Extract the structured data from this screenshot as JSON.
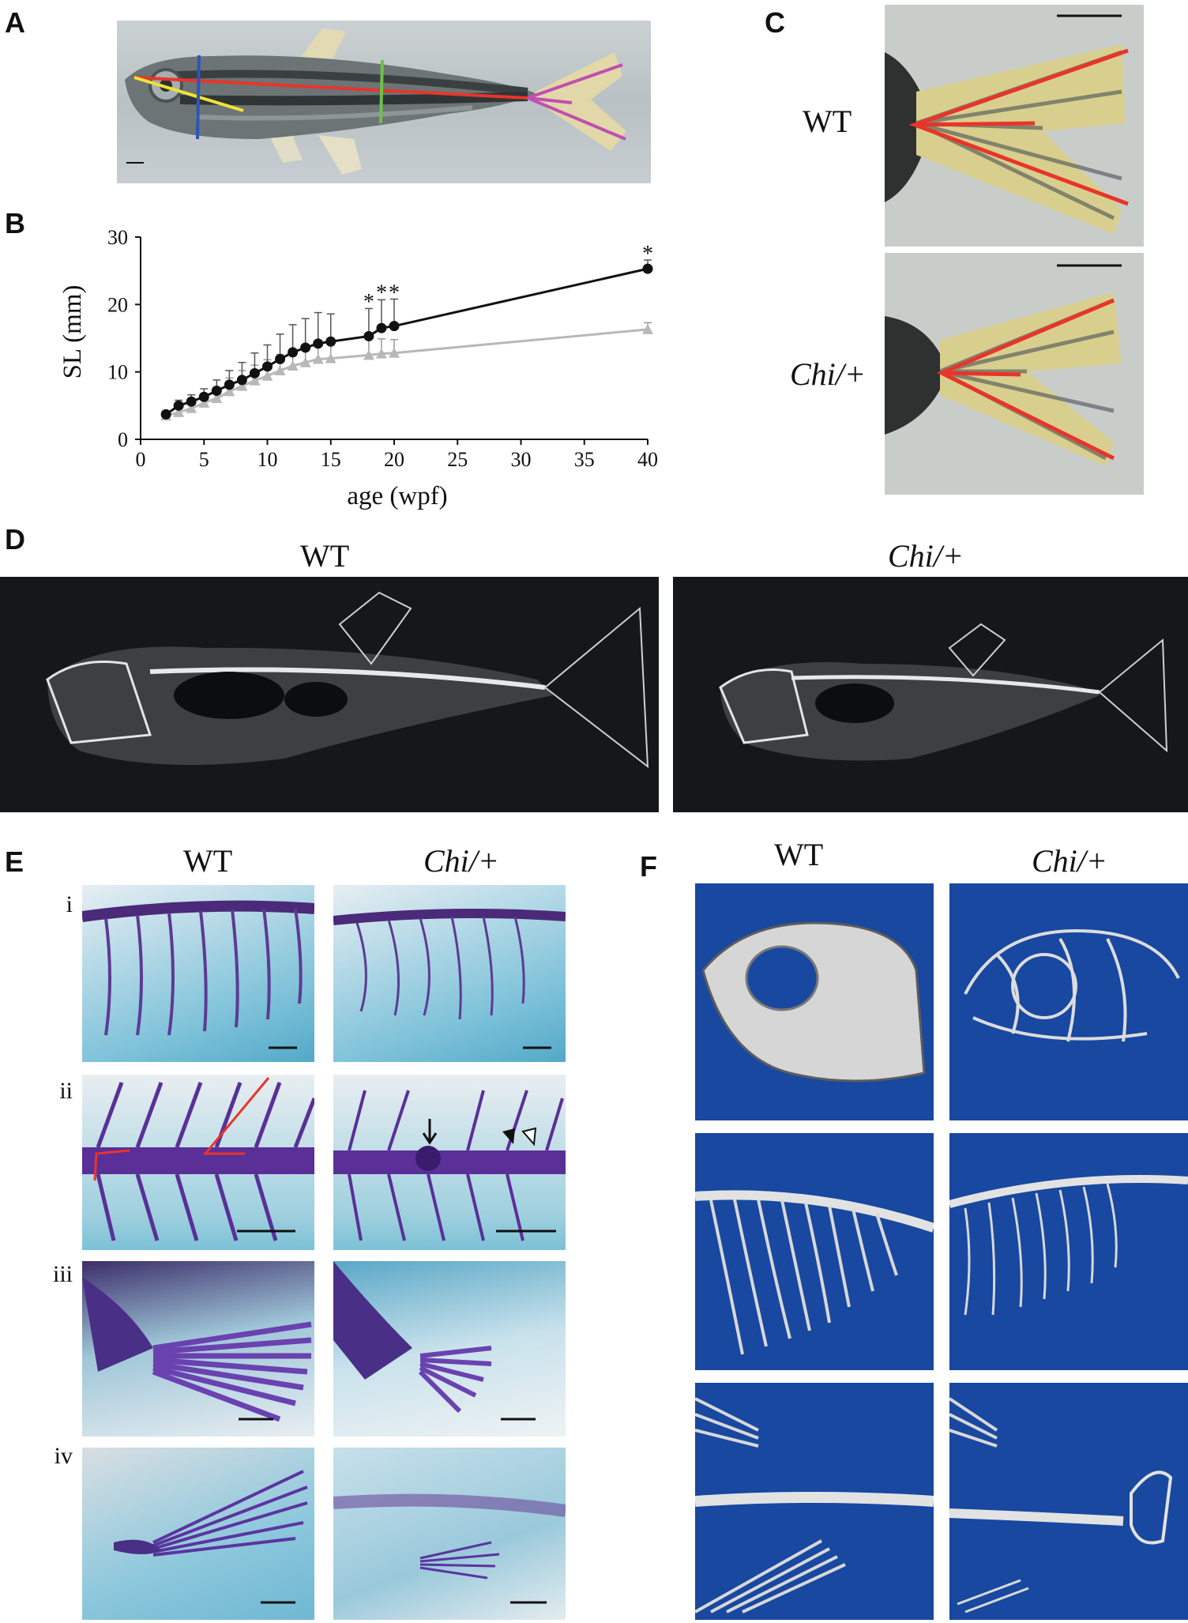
{
  "panels": {
    "A": {
      "label": "A"
    },
    "B": {
      "label": "B"
    },
    "C": {
      "label": "C"
    },
    "D": {
      "label": "D"
    },
    "E": {
      "label": "E"
    },
    "F": {
      "label": "F"
    }
  },
  "genotypes": {
    "wt": "WT",
    "mutant": "Chi/+"
  },
  "panel_e_rows": [
    "i",
    "ii",
    "iii",
    "iv"
  ],
  "colors": {
    "wt_line": "#111111",
    "mutant_line": "#b8b8b8",
    "measure_red": "#e8352a",
    "measure_blue": "#2a57b8",
    "measure_green": "#6cc24a",
    "measure_yellow": "#f0e234",
    "measure_magenta": "#c04fb2",
    "ct_background": "#1848a0"
  },
  "chart_data": {
    "type": "line",
    "xlabel": "age (wpf)",
    "ylabel": "SL (mm)",
    "xlim": [
      0,
      40
    ],
    "ylim": [
      0,
      30
    ],
    "xticks": [
      0,
      5,
      10,
      15,
      20,
      25,
      30,
      35,
      40
    ],
    "yticks": [
      0,
      10,
      20,
      30
    ],
    "grid": false,
    "series": [
      {
        "color": "#111111",
        "marker": "circle",
        "x": [
          2,
          3,
          4,
          5,
          6,
          7,
          8,
          9,
          10,
          11,
          12,
          13,
          14,
          15,
          18,
          19,
          20,
          40
        ],
        "y": [
          3.7,
          5.0,
          5.6,
          6.3,
          7.2,
          8.1,
          8.8,
          9.8,
          10.8,
          11.9,
          12.9,
          13.6,
          14.2,
          14.5,
          15.3,
          16.5,
          16.8,
          25.3
        ],
        "err": [
          0.5,
          0.8,
          1.0,
          1.2,
          1.6,
          2.1,
          2.6,
          3.0,
          3.2,
          3.7,
          4.1,
          4.3,
          4.6,
          4.1,
          4.1,
          4.2,
          4.0,
          1.3
        ]
      },
      {
        "color": "#b8b8b8",
        "marker": "triangle",
        "x": [
          2,
          3,
          4,
          5,
          6,
          7,
          8,
          9,
          10,
          11,
          12,
          13,
          14,
          15,
          18,
          19,
          20,
          40
        ],
        "y": [
          3.5,
          4.0,
          4.6,
          5.4,
          6.1,
          7.1,
          7.9,
          8.7,
          9.4,
          10.2,
          10.9,
          11.4,
          11.9,
          12.0,
          12.5,
          12.7,
          12.8,
          16.3
        ],
        "err": [
          0.4,
          0.5,
          0.8,
          1.2,
          1.6,
          2.0,
          2.3,
          2.3,
          2.4,
          2.4,
          2.5,
          2.5,
          2.5,
          2.4,
          2.4,
          2.2,
          2.0,
          1.0
        ]
      }
    ],
    "annotations": [
      {
        "x": 18,
        "y": 20.3,
        "text": "*"
      },
      {
        "x": 19,
        "y": 21.6,
        "text": "*"
      },
      {
        "x": 20,
        "y": 21.6,
        "text": "*"
      },
      {
        "x": 40,
        "y": 27.4,
        "text": "*"
      }
    ]
  }
}
